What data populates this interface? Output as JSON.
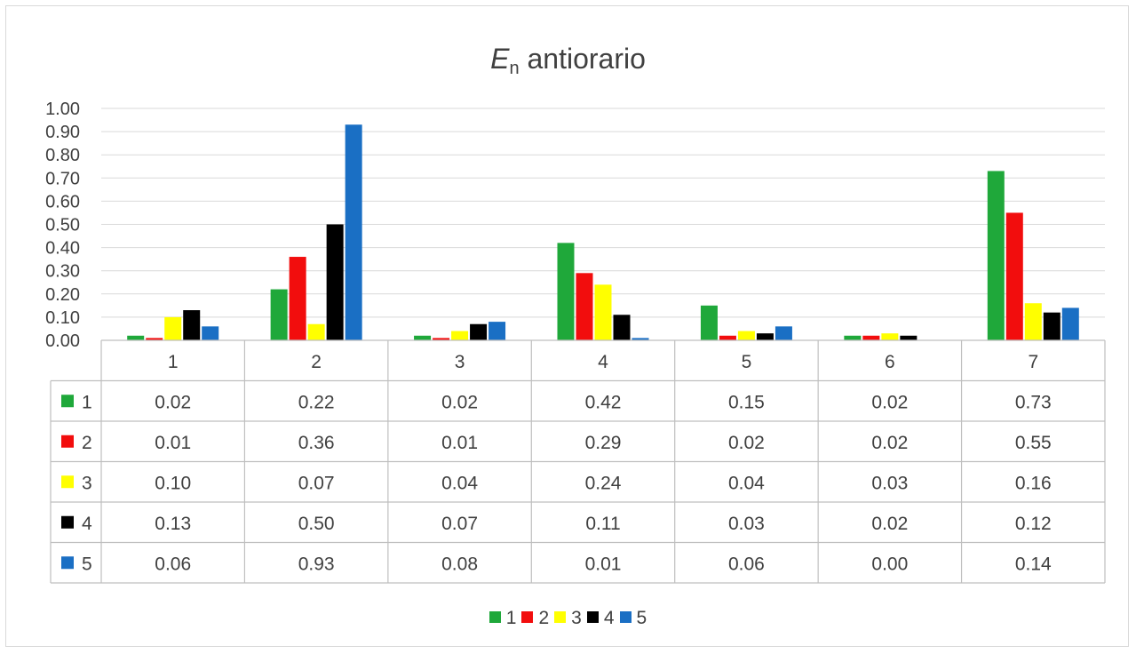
{
  "title": {
    "symbol": "E",
    "subscript": "n",
    "text": "antiorario"
  },
  "chart_data": {
    "type": "bar",
    "title": "En antiorario",
    "categories": [
      "1",
      "2",
      "3",
      "4",
      "5",
      "6",
      "7"
    ],
    "ylim": [
      0,
      1.0
    ],
    "yticks": [
      "0.00",
      "0.10",
      "0.20",
      "0.30",
      "0.40",
      "0.50",
      "0.60",
      "0.70",
      "0.80",
      "0.90",
      "1.00"
    ],
    "grid": true,
    "legend_position": "bottom",
    "data_table": true,
    "series": [
      {
        "name": "1",
        "color": "#1fa83a",
        "values": [
          0.02,
          0.22,
          0.02,
          0.42,
          0.15,
          0.02,
          0.73
        ],
        "labels": [
          "0.02",
          "0.22",
          "0.02",
          "0.42",
          "0.15",
          "0.02",
          "0.73"
        ]
      },
      {
        "name": "2",
        "color": "#f20d0d",
        "values": [
          0.01,
          0.36,
          0.01,
          0.29,
          0.02,
          0.02,
          0.55
        ],
        "labels": [
          "0.01",
          "0.36",
          "0.01",
          "0.29",
          "0.02",
          "0.02",
          "0.55"
        ]
      },
      {
        "name": "3",
        "color": "#ffff00",
        "values": [
          0.1,
          0.07,
          0.04,
          0.24,
          0.04,
          0.03,
          0.16
        ],
        "labels": [
          "0.10",
          "0.07",
          "0.04",
          "0.24",
          "0.04",
          "0.03",
          "0.16"
        ]
      },
      {
        "name": "4",
        "color": "#000000",
        "values": [
          0.13,
          0.5,
          0.07,
          0.11,
          0.03,
          0.02,
          0.12
        ],
        "labels": [
          "0.13",
          "0.50",
          "0.07",
          "0.11",
          "0.03",
          "0.02",
          "0.12"
        ]
      },
      {
        "name": "5",
        "color": "#1a6fc4",
        "values": [
          0.06,
          0.93,
          0.08,
          0.01,
          0.06,
          0.0,
          0.14
        ],
        "labels": [
          "0.06",
          "0.93",
          "0.08",
          "0.01",
          "0.06",
          "0.00",
          "0.14"
        ]
      }
    ]
  }
}
